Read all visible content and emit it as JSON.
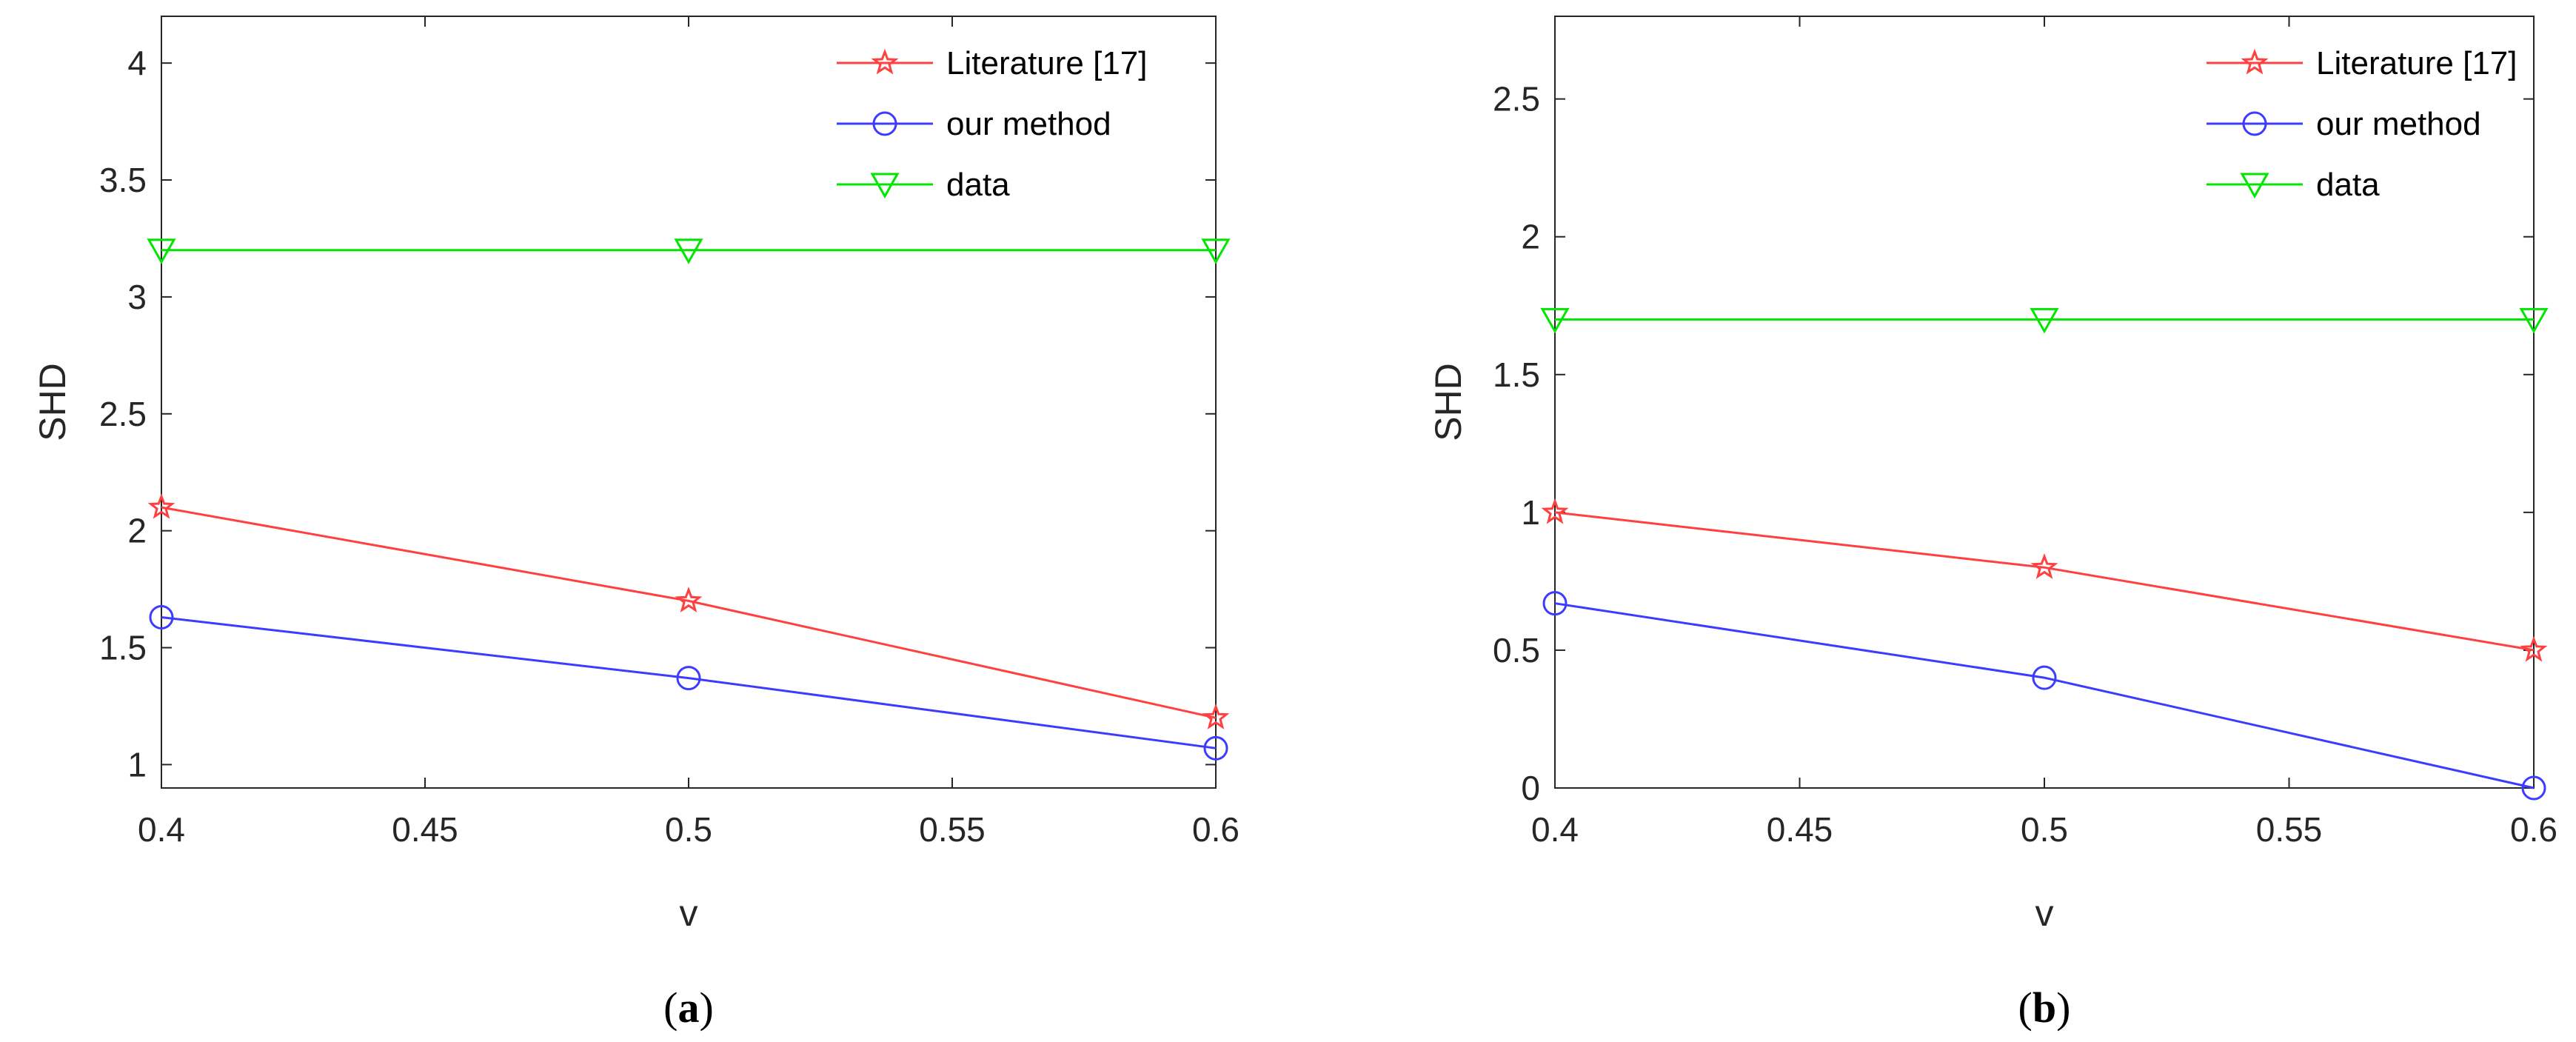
{
  "chart_data": [
    {
      "type": "line",
      "panel_caption": {
        "open": "(",
        "letter": "a",
        "close": ")"
      },
      "xlabel": "v",
      "ylabel": "SHD",
      "xlim": [
        0.4,
        0.6
      ],
      "ylim": [
        0.9,
        4.2
      ],
      "xticks": [
        0.4,
        0.45,
        0.5,
        0.55,
        0.6
      ],
      "xtick_labels": [
        "0.4",
        "0.45",
        "0.5",
        "0.55",
        "0.6"
      ],
      "yticks": [
        1,
        1.5,
        2,
        2.5,
        3,
        3.5,
        4
      ],
      "ytick_labels": [
        "1",
        "1.5",
        "2",
        "2.5",
        "3",
        "3.5",
        "4"
      ],
      "grid": false,
      "legend_position": "top-right",
      "x": [
        0.4,
        0.5,
        0.6
      ],
      "series": [
        {
          "name": "Literature [17]",
          "values": [
            2.1,
            1.7,
            1.2
          ],
          "color": "#ff4040",
          "marker": "star"
        },
        {
          "name": "our method",
          "values": [
            1.63,
            1.37,
            1.07
          ],
          "color": "#3c3cff",
          "marker": "circle"
        },
        {
          "name": "data",
          "values": [
            3.2,
            3.2,
            3.2
          ],
          "color": "#00e600",
          "marker": "triangle-down"
        }
      ]
    },
    {
      "type": "line",
      "panel_caption": {
        "open": "(",
        "letter": "b",
        "close": ")"
      },
      "xlabel": "v",
      "ylabel": "SHD",
      "xlim": [
        0.4,
        0.6
      ],
      "ylim": [
        0,
        2.8
      ],
      "xticks": [
        0.4,
        0.45,
        0.5,
        0.55,
        0.6
      ],
      "xtick_labels": [
        "0.4",
        "0.45",
        "0.5",
        "0.55",
        "0.6"
      ],
      "yticks": [
        0,
        0.5,
        1,
        1.5,
        2,
        2.5
      ],
      "ytick_labels": [
        "0",
        "0.5",
        "1",
        "1.5",
        "2",
        "2.5"
      ],
      "grid": false,
      "legend_position": "top-right",
      "x": [
        0.4,
        0.5,
        0.6
      ],
      "series": [
        {
          "name": "Literature [17]",
          "values": [
            1.0,
            0.8,
            0.5
          ],
          "color": "#ff4040",
          "marker": "star"
        },
        {
          "name": "our method",
          "values": [
            0.67,
            0.4,
            0.0
          ],
          "color": "#3c3cff",
          "marker": "circle"
        },
        {
          "name": "data",
          "values": [
            1.7,
            1.7,
            1.7
          ],
          "color": "#00e600",
          "marker": "triangle-down"
        }
      ]
    }
  ]
}
